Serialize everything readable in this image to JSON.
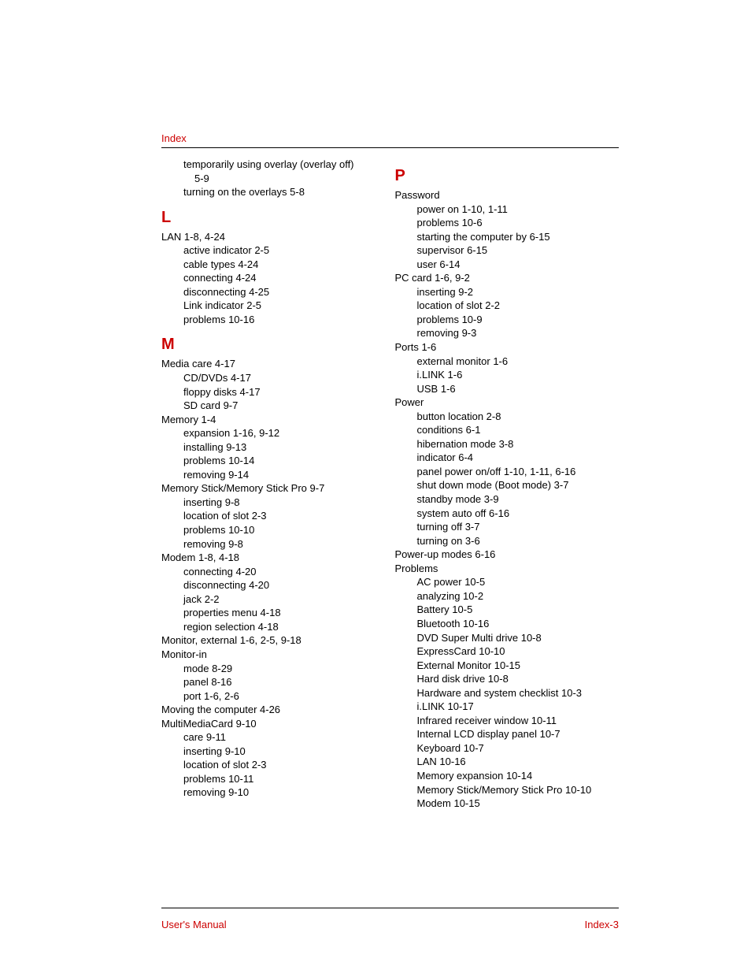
{
  "header": {
    "title": "Index"
  },
  "footer": {
    "left": "User's Manual",
    "right": "Index-3"
  },
  "colors": {
    "accent": "#cc0000",
    "text": "#000000",
    "background": "#ffffff"
  },
  "typography": {
    "body_fontsize": 13,
    "letter_fontsize": 20,
    "font_family": "Arial"
  },
  "left_column": {
    "pre": [
      {
        "text": "temporarily using overlay (overlay off)",
        "indent": "continuation"
      },
      {
        "text": "5-9",
        "indent": "continuation-indent"
      },
      {
        "text": "turning on the overlays 5-8",
        "indent": "continuation"
      }
    ],
    "sections": [
      {
        "letter": "L",
        "entries": [
          {
            "text": "LAN 1-8, 4-24",
            "indent": "top-level"
          },
          {
            "text": "active indicator 2-5",
            "indent": "sub-level"
          },
          {
            "text": "cable types 4-24",
            "indent": "sub-level"
          },
          {
            "text": "connecting 4-24",
            "indent": "sub-level"
          },
          {
            "text": "disconnecting 4-25",
            "indent": "sub-level"
          },
          {
            "text": "Link indicator 2-5",
            "indent": "sub-level"
          },
          {
            "text": "problems 10-16",
            "indent": "sub-level"
          }
        ]
      },
      {
        "letter": "M",
        "entries": [
          {
            "text": "Media care 4-17",
            "indent": "top-level"
          },
          {
            "text": "CD/DVDs 4-17",
            "indent": "sub-level"
          },
          {
            "text": "floppy disks 4-17",
            "indent": "sub-level"
          },
          {
            "text": "SD card 9-7",
            "indent": "sub-level"
          },
          {
            "text": "Memory 1-4",
            "indent": "top-level"
          },
          {
            "text": "expansion 1-16, 9-12",
            "indent": "sub-level"
          },
          {
            "text": "installing 9-13",
            "indent": "sub-level"
          },
          {
            "text": "problems 10-14",
            "indent": "sub-level"
          },
          {
            "text": "removing 9-14",
            "indent": "sub-level"
          },
          {
            "text": "Memory Stick/Memory Stick Pro 9-7",
            "indent": "top-level"
          },
          {
            "text": "inserting 9-8",
            "indent": "sub-level"
          },
          {
            "text": "location of slot 2-3",
            "indent": "sub-level"
          },
          {
            "text": "problems 10-10",
            "indent": "sub-level"
          },
          {
            "text": "removing 9-8",
            "indent": "sub-level"
          },
          {
            "text": "Modem 1-8, 4-18",
            "indent": "top-level"
          },
          {
            "text": "connecting 4-20",
            "indent": "sub-level"
          },
          {
            "text": "disconnecting 4-20",
            "indent": "sub-level"
          },
          {
            "text": "jack 2-2",
            "indent": "sub-level"
          },
          {
            "text": "properties menu 4-18",
            "indent": "sub-level"
          },
          {
            "text": "region selection 4-18",
            "indent": "sub-level"
          },
          {
            "text": "Monitor, external 1-6, 2-5, 9-18",
            "indent": "top-level"
          },
          {
            "text": "Monitor-in",
            "indent": "top-level"
          },
          {
            "text": "mode 8-29",
            "indent": "sub-level"
          },
          {
            "text": "panel 8-16",
            "indent": "sub-level"
          },
          {
            "text": "port 1-6, 2-6",
            "indent": "sub-level"
          },
          {
            "text": "Moving the computer 4-26",
            "indent": "top-level"
          },
          {
            "text": "MultiMediaCard 9-10",
            "indent": "top-level"
          },
          {
            "text": "care 9-11",
            "indent": "sub-level"
          },
          {
            "text": "inserting 9-10",
            "indent": "sub-level"
          },
          {
            "text": "location of slot 2-3",
            "indent": "sub-level"
          },
          {
            "text": "problems 10-11",
            "indent": "sub-level"
          },
          {
            "text": "removing 9-10",
            "indent": "sub-level"
          }
        ]
      }
    ]
  },
  "right_column": {
    "sections": [
      {
        "letter": "P",
        "entries": [
          {
            "text": "Password",
            "indent": "top-level"
          },
          {
            "text": "power on 1-10, 1-11",
            "indent": "sub-level"
          },
          {
            "text": "problems 10-6",
            "indent": "sub-level"
          },
          {
            "text": "starting the computer by 6-15",
            "indent": "sub-level"
          },
          {
            "text": "supervisor 6-15",
            "indent": "sub-level"
          },
          {
            "text": "user 6-14",
            "indent": "sub-level"
          },
          {
            "text": "PC card 1-6, 9-2",
            "indent": "top-level"
          },
          {
            "text": "inserting 9-2",
            "indent": "sub-level"
          },
          {
            "text": "location of slot 2-2",
            "indent": "sub-level"
          },
          {
            "text": "problems 10-9",
            "indent": "sub-level"
          },
          {
            "text": "removing 9-3",
            "indent": "sub-level"
          },
          {
            "text": "Ports 1-6",
            "indent": "top-level"
          },
          {
            "text": "external monitor 1-6",
            "indent": "sub-level"
          },
          {
            "text": "i.LINK 1-6",
            "indent": "sub-level"
          },
          {
            "text": "USB 1-6",
            "indent": "sub-level"
          },
          {
            "text": "Power",
            "indent": "top-level"
          },
          {
            "text": "button location 2-8",
            "indent": "sub-level"
          },
          {
            "text": "conditions 6-1",
            "indent": "sub-level"
          },
          {
            "text": "hibernation mode 3-8",
            "indent": "sub-level"
          },
          {
            "text": "indicator 6-4",
            "indent": "sub-level"
          },
          {
            "text": "panel power on/off 1-10, 1-11, 6-16",
            "indent": "sub-level"
          },
          {
            "text": "shut down mode (Boot mode) 3-7",
            "indent": "sub-level"
          },
          {
            "text": "standby mode 3-9",
            "indent": "sub-level"
          },
          {
            "text": "system auto off 6-16",
            "indent": "sub-level"
          },
          {
            "text": "turning off 3-7",
            "indent": "sub-level"
          },
          {
            "text": "turning on 3-6",
            "indent": "sub-level"
          },
          {
            "text": "Power-up modes 6-16",
            "indent": "top-level"
          },
          {
            "text": "Problems",
            "indent": "top-level"
          },
          {
            "text": "AC power 10-5",
            "indent": "sub-level"
          },
          {
            "text": "analyzing 10-2",
            "indent": "sub-level"
          },
          {
            "text": "Battery 10-5",
            "indent": "sub-level"
          },
          {
            "text": "Bluetooth 10-16",
            "indent": "sub-level"
          },
          {
            "text": "DVD Super Multi drive 10-8",
            "indent": "sub-level"
          },
          {
            "text": "ExpressCard 10-10",
            "indent": "sub-level"
          },
          {
            "text": "External Monitor 10-15",
            "indent": "sub-level"
          },
          {
            "text": "Hard disk drive 10-8",
            "indent": "sub-level"
          },
          {
            "text": "Hardware and system checklist 10-3",
            "indent": "sub-level"
          },
          {
            "text": "i.LINK 10-17",
            "indent": "sub-level"
          },
          {
            "text": "Infrared receiver window 10-11",
            "indent": "sub-level"
          },
          {
            "text": "Internal LCD display panel 10-7",
            "indent": "sub-level"
          },
          {
            "text": "Keyboard 10-7",
            "indent": "sub-level"
          },
          {
            "text": "LAN 10-16",
            "indent": "sub-level"
          },
          {
            "text": "Memory expansion 10-14",
            "indent": "sub-level"
          },
          {
            "text": "Memory Stick/Memory Stick Pro 10-10",
            "indent": "sub-level"
          },
          {
            "text": "Modem 10-15",
            "indent": "sub-level"
          }
        ]
      }
    ]
  }
}
